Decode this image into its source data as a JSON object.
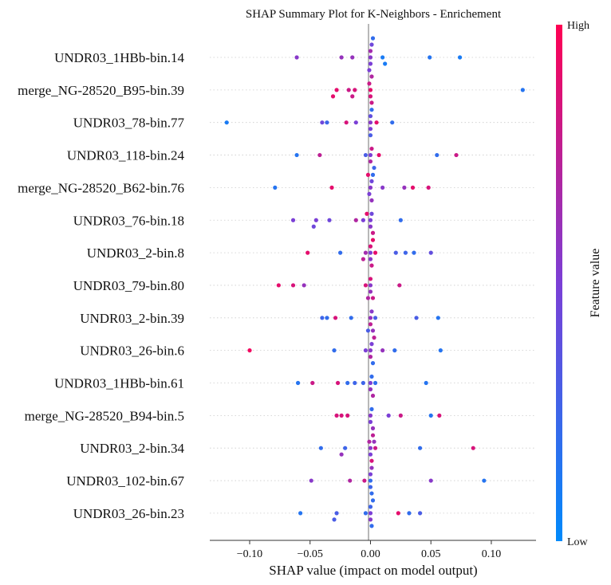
{
  "chart_data": {
    "type": "scatter",
    "title": "SHAP Summary Plot for K-Neighbors - Enrichement",
    "xlabel": "SHAP value (impact on model output)",
    "xlim": [
      -0.133,
      0.137
    ],
    "xticks": [
      -0.1,
      -0.05,
      0.0,
      0.05,
      0.1
    ],
    "xtick_labels": [
      "−0.10",
      "−0.05",
      "0.00",
      "0.05",
      "0.10"
    ],
    "colorbar": {
      "label": "Feature value",
      "high_label": "High",
      "low_label": "Low",
      "low_color": "#008afb",
      "high_color": "#ff0052"
    },
    "features": [
      {
        "name": "UNDR03_1HBb-bin.14",
        "points": [
          [
            -0.061,
            0.55
          ],
          [
            -0.024,
            0.6
          ],
          [
            -0.015,
            0.6
          ],
          [
            -0.001,
            0.5
          ],
          [
            0.0,
            0.55
          ],
          [
            0.0,
            0.5
          ],
          [
            0.0,
            0.65
          ],
          [
            0.001,
            0.45
          ],
          [
            0.001,
            0.7
          ],
          [
            0.002,
            0.2
          ],
          [
            0.01,
            0.1
          ],
          [
            0.012,
            0.1
          ],
          [
            0.049,
            0.15
          ],
          [
            0.074,
            0.1
          ]
        ]
      },
      {
        "name": "merge_NG-28520_B95-bin.39",
        "points": [
          [
            -0.031,
            0.9
          ],
          [
            -0.028,
            0.9
          ],
          [
            -0.018,
            0.8
          ],
          [
            -0.015,
            0.8
          ],
          [
            -0.013,
            0.85
          ],
          [
            -0.001,
            0.8
          ],
          [
            0.0,
            0.9
          ],
          [
            0.0,
            0.85
          ],
          [
            0.001,
            0.8
          ],
          [
            0.126,
            0.15
          ]
        ]
      },
      {
        "name": "UNDR03_78-bin.77",
        "points": [
          [
            -0.119,
            0.1
          ],
          [
            -0.04,
            0.45
          ],
          [
            -0.036,
            0.25
          ],
          [
            -0.02,
            0.85
          ],
          [
            -0.012,
            0.5
          ],
          [
            0.0,
            0.55
          ],
          [
            0.0,
            0.5
          ],
          [
            0.0,
            0.4
          ],
          [
            0.0,
            0.3
          ],
          [
            0.001,
            0.2
          ],
          [
            0.005,
            0.9
          ],
          [
            0.018,
            0.2
          ]
        ]
      },
      {
        "name": "UNDR03_118-bin.24",
        "points": [
          [
            -0.061,
            0.15
          ],
          [
            -0.042,
            0.75
          ],
          [
            -0.004,
            0.3
          ],
          [
            0.0,
            0.5
          ],
          [
            0.0,
            0.7
          ],
          [
            0.001,
            0.8
          ],
          [
            0.003,
            0.25
          ],
          [
            0.007,
            0.9
          ],
          [
            0.055,
            0.2
          ],
          [
            0.071,
            0.8
          ]
        ]
      },
      {
        "name": "merge_NG-28520_B62-bin.76",
        "points": [
          [
            -0.079,
            0.15
          ],
          [
            -0.032,
            0.9
          ],
          [
            -0.002,
            0.9
          ],
          [
            -0.001,
            0.5
          ],
          [
            0.0,
            0.55
          ],
          [
            0.001,
            0.45
          ],
          [
            0.001,
            0.6
          ],
          [
            0.002,
            0.2
          ],
          [
            0.01,
            0.55
          ],
          [
            0.028,
            0.6
          ],
          [
            0.035,
            0.9
          ],
          [
            0.048,
            0.85
          ]
        ]
      },
      {
        "name": "UNDR03_76-bin.18",
        "points": [
          [
            -0.064,
            0.5
          ],
          [
            -0.047,
            0.45
          ],
          [
            -0.045,
            0.5
          ],
          [
            -0.034,
            0.45
          ],
          [
            -0.012,
            0.7
          ],
          [
            -0.006,
            0.5
          ],
          [
            -0.003,
            0.9
          ],
          [
            0.0,
            0.5
          ],
          [
            0.0,
            0.55
          ],
          [
            0.001,
            0.45
          ],
          [
            0.002,
            0.8
          ],
          [
            0.025,
            0.2
          ]
        ]
      },
      {
        "name": "UNDR03_2-bin.8",
        "points": [
          [
            -0.052,
            0.9
          ],
          [
            -0.025,
            0.2
          ],
          [
            -0.006,
            0.75
          ],
          [
            -0.004,
            0.65
          ],
          [
            0.0,
            0.5
          ],
          [
            0.0,
            0.55
          ],
          [
            0.0,
            0.85
          ],
          [
            0.001,
            0.8
          ],
          [
            0.002,
            0.9
          ],
          [
            0.004,
            0.9
          ],
          [
            0.021,
            0.3
          ],
          [
            0.029,
            0.25
          ],
          [
            0.036,
            0.2
          ],
          [
            0.05,
            0.4
          ]
        ]
      },
      {
        "name": "UNDR03_79-bin.80",
        "points": [
          [
            -0.076,
            0.9
          ],
          [
            -0.064,
            0.85
          ],
          [
            -0.055,
            0.6
          ],
          [
            -0.004,
            0.85
          ],
          [
            -0.002,
            0.7
          ],
          [
            0.0,
            0.55
          ],
          [
            0.0,
            0.6
          ],
          [
            0.0,
            0.85
          ],
          [
            0.002,
            0.8
          ],
          [
            0.024,
            0.8
          ]
        ]
      },
      {
        "name": "UNDR03_2-bin.39",
        "points": [
          [
            -0.04,
            0.25
          ],
          [
            -0.036,
            0.2
          ],
          [
            -0.029,
            0.85
          ],
          [
            -0.016,
            0.2
          ],
          [
            -0.002,
            0.3
          ],
          [
            0.0,
            0.6
          ],
          [
            0.0,
            0.75
          ],
          [
            0.001,
            0.55
          ],
          [
            0.002,
            0.6
          ],
          [
            0.004,
            0.3
          ],
          [
            0.038,
            0.3
          ],
          [
            0.056,
            0.15
          ]
        ]
      },
      {
        "name": "UNDR03_26-bin.6",
        "points": [
          [
            -0.1,
            0.95
          ],
          [
            -0.03,
            0.2
          ],
          [
            -0.004,
            0.5
          ],
          [
            0.0,
            0.55
          ],
          [
            0.0,
            0.7
          ],
          [
            0.001,
            0.5
          ],
          [
            0.002,
            0.2
          ],
          [
            0.003,
            0.75
          ],
          [
            0.01,
            0.6
          ],
          [
            0.02,
            0.2
          ],
          [
            0.058,
            0.15
          ]
        ]
      },
      {
        "name": "UNDR03_1HBb-bin.61",
        "points": [
          [
            -0.06,
            0.15
          ],
          [
            -0.048,
            0.8
          ],
          [
            -0.027,
            0.85
          ],
          [
            -0.019,
            0.2
          ],
          [
            -0.013,
            0.25
          ],
          [
            -0.006,
            0.25
          ],
          [
            0.0,
            0.5
          ],
          [
            0.0,
            0.6
          ],
          [
            0.001,
            0.2
          ],
          [
            0.002,
            0.7
          ],
          [
            0.004,
            0.2
          ],
          [
            0.046,
            0.15
          ]
        ]
      },
      {
        "name": "merge_NG-28520_B94-bin.5",
        "points": [
          [
            -0.028,
            0.85
          ],
          [
            -0.024,
            0.85
          ],
          [
            -0.019,
            0.85
          ],
          [
            0.0,
            0.55
          ],
          [
            0.0,
            0.5
          ],
          [
            0.001,
            0.2
          ],
          [
            0.002,
            0.6
          ],
          [
            0.015,
            0.5
          ],
          [
            0.025,
            0.8
          ],
          [
            0.05,
            0.15
          ],
          [
            0.057,
            0.85
          ]
        ]
      },
      {
        "name": "UNDR03_2-bin.34",
        "points": [
          [
            -0.041,
            0.2
          ],
          [
            -0.024,
            0.6
          ],
          [
            -0.021,
            0.25
          ],
          [
            -0.001,
            0.7
          ],
          [
            0.0,
            0.55
          ],
          [
            0.0,
            0.5
          ],
          [
            0.001,
            0.85
          ],
          [
            0.002,
            0.75
          ],
          [
            0.003,
            0.6
          ],
          [
            0.004,
            0.8
          ],
          [
            0.041,
            0.2
          ],
          [
            0.085,
            0.85
          ]
        ]
      },
      {
        "name": "UNDR03_102-bin.67",
        "points": [
          [
            -0.049,
            0.55
          ],
          [
            -0.017,
            0.7
          ],
          [
            -0.005,
            0.8
          ],
          [
            0.0,
            0.2
          ],
          [
            0.0,
            0.25
          ],
          [
            0.0,
            0.5
          ],
          [
            0.001,
            0.2
          ],
          [
            0.001,
            0.6
          ],
          [
            0.05,
            0.55
          ],
          [
            0.094,
            0.15
          ]
        ]
      },
      {
        "name": "UNDR03_26-bin.23",
        "points": [
          [
            -0.058,
            0.15
          ],
          [
            -0.03,
            0.3
          ],
          [
            -0.028,
            0.3
          ],
          [
            -0.004,
            0.2
          ],
          [
            0.0,
            0.5
          ],
          [
            0.0,
            0.55
          ],
          [
            0.0,
            0.25
          ],
          [
            0.001,
            0.2
          ],
          [
            0.002,
            0.2
          ],
          [
            0.023,
            0.9
          ],
          [
            0.032,
            0.2
          ],
          [
            0.041,
            0.3
          ]
        ]
      }
    ]
  }
}
